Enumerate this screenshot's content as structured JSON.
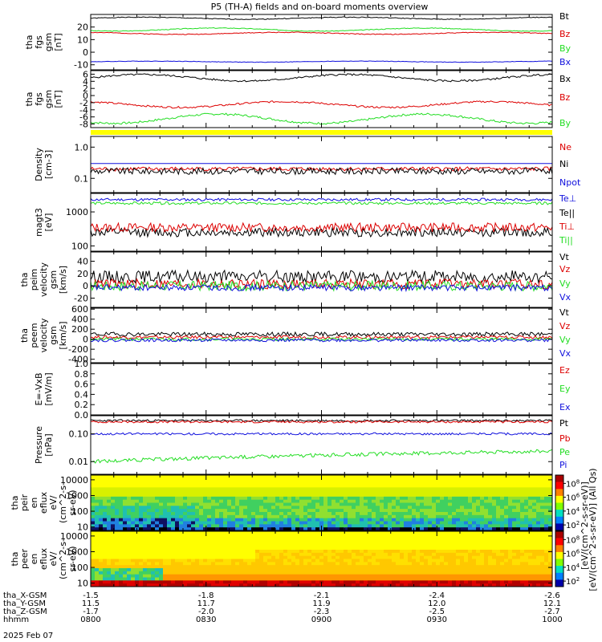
{
  "title": "P5 (TH-A) fields and on-board moments overview",
  "colors": {
    "black": "#000000",
    "red": "#dd0000",
    "green": "#22dd22",
    "blue": "#1010dd",
    "yellow": "#ffff00",
    "axis": "#000000"
  },
  "chart_data": [
    {
      "type": "line",
      "ylabel": [
        "tha",
        "fgs",
        "gsm",
        "[nT]"
      ],
      "ylim": [
        -14,
        30
      ],
      "yticks": [
        "20",
        "10",
        "0",
        "-10"
      ],
      "ytickvals": [
        20,
        10,
        0,
        -10
      ],
      "series": [
        {
          "name": "Bt",
          "color": "#000000",
          "base": 27,
          "amp": 0.8,
          "noise": 0.3,
          "seed": 1
        },
        {
          "name": "Bz",
          "color": "#dd0000",
          "base": 15,
          "amp": 0.8,
          "noise": 0.3,
          "seed": 2
        },
        {
          "name": "By",
          "color": "#22dd22",
          "base": 18,
          "amp": 1.2,
          "noise": 0.3,
          "seed": 3
        },
        {
          "name": "Bx",
          "color": "#1010dd",
          "base": -7.5,
          "amp": 0.4,
          "noise": 0.2,
          "seed": 4
        }
      ]
    },
    {
      "type": "line",
      "ylabel": [
        "tha",
        "fgs",
        "gsm",
        "[nT]"
      ],
      "ylim": [
        -9,
        7
      ],
      "yticks": [
        "6",
        "4",
        "2",
        "0",
        "-2",
        "-4",
        "-6",
        "-8"
      ],
      "ytickvals": [
        6,
        4,
        2,
        0,
        -2,
        -4,
        -6,
        -8
      ],
      "series": [
        {
          "name": "Bx",
          "color": "#000000",
          "base": 5,
          "amp": 0.9,
          "noise": 0.25,
          "seed": 5
        },
        {
          "name": "Bz",
          "color": "#dd0000",
          "base": -2.5,
          "amp": 0.8,
          "noise": 0.25,
          "seed": 6
        },
        {
          "name": "By",
          "color": "#22dd22",
          "base": -6.5,
          "amp": 1.3,
          "noise": 0.3,
          "seed": 7
        }
      ]
    },
    {
      "type": "line",
      "log": true,
      "ylabel": [
        "Density",
        "[cm-3]"
      ],
      "ylim": [
        0.035,
        2.2
      ],
      "yticks": [
        "1.0",
        "0.1"
      ],
      "ytickvals": [
        1.0,
        0.1
      ],
      "series": [
        {
          "name": "Ne",
          "color": "#dd0000",
          "base": 0.2,
          "noise": 0.05,
          "seed": 8
        },
        {
          "name": "Ni",
          "color": "#000000",
          "base": 0.17,
          "noise": 0.08,
          "seed": 9
        },
        {
          "name": "Npot",
          "color": "#1010dd",
          "base": 0.3,
          "noise": 0.0,
          "seed": 10
        }
      ]
    },
    {
      "type": "line",
      "log": true,
      "ylabel": [
        "magt3",
        "[eV]"
      ],
      "ylim": [
        70,
        3500
      ],
      "yticks": [
        "1000",
        "100"
      ],
      "ytickvals": [
        1000,
        100
      ],
      "series": [
        {
          "name": "Te⊥",
          "color": "#1010dd",
          "base": 2300,
          "noise": 0.03,
          "seed": 11
        },
        {
          "name": "Te||",
          "color": "#000000",
          "base": 250,
          "noise": 0.1,
          "seed": 12
        },
        {
          "name": "Ti⊥",
          "color": "#dd0000",
          "base": 350,
          "noise": 0.1,
          "seed": 13
        },
        {
          "name": "Ti||",
          "color": "#22dd22",
          "base": 1800,
          "noise": 0.03,
          "seed": 14
        }
      ]
    },
    {
      "type": "line",
      "ylabel": [
        "tha",
        "peim",
        "velocity",
        "gsm",
        "[km/s]"
      ],
      "ylim": [
        -35,
        55
      ],
      "yticks": [
        "40",
        "20",
        "0",
        "-20"
      ],
      "ytickvals": [
        40,
        20,
        0,
        -20
      ],
      "series": [
        {
          "name": "Vt",
          "color": "#000000",
          "base": 15,
          "noise": 10,
          "seed": 15
        },
        {
          "name": "Vz",
          "color": "#dd0000",
          "base": 3,
          "noise": 8,
          "seed": 16
        },
        {
          "name": "Vy",
          "color": "#22dd22",
          "base": 0,
          "noise": 8,
          "seed": 17
        },
        {
          "name": "Vx",
          "color": "#1010dd",
          "base": -3,
          "noise": 5,
          "seed": 18
        }
      ]
    },
    {
      "type": "line",
      "ylabel": [
        "tha",
        "peem",
        "velocity",
        "gsm",
        "[km/s]"
      ],
      "ylim": [
        -470,
        620
      ],
      "yticks": [
        "600",
        "400",
        "200",
        "0",
        "-200",
        "-400"
      ],
      "ytickvals": [
        600,
        400,
        200,
        0,
        -200,
        -400
      ],
      "series": [
        {
          "name": "Vt",
          "color": "#000000",
          "base": 100,
          "noise": 40,
          "seed": 19
        },
        {
          "name": "Vz",
          "color": "#dd0000",
          "base": 40,
          "noise": 30,
          "seed": 20
        },
        {
          "name": "Vy",
          "color": "#22dd22",
          "base": 0,
          "noise": 30,
          "seed": 21
        },
        {
          "name": "Vx",
          "color": "#1010dd",
          "base": -20,
          "noise": 30,
          "seed": 22
        }
      ]
    },
    {
      "type": "line",
      "ylabel": [
        "E=-VxB",
        "[mV/m]"
      ],
      "ylim": [
        0,
        1
      ],
      "yticks": [
        "1.0",
        "0.8",
        "0.6",
        "0.4",
        "0.2",
        "0.0"
      ],
      "ytickvals": [
        1.0,
        0.8,
        0.6,
        0.4,
        0.2,
        0.0
      ],
      "series": [
        {
          "name": "Ez",
          "color": "#dd0000"
        },
        {
          "name": "Ey",
          "color": "#22dd22"
        },
        {
          "name": "Ex",
          "color": "#1010dd"
        }
      ]
    },
    {
      "type": "line",
      "log": true,
      "ylabel": [
        "Pressure",
        "[nPa]"
      ],
      "ylim": [
        0.0035,
        0.45
      ],
      "yticks": [
        "0.10",
        "0.01"
      ],
      "ytickvals": [
        0.1,
        0.01
      ],
      "series": [
        {
          "name": "Pt",
          "color": "#000000",
          "base": 0.3,
          "noise": 0.03,
          "seed": 23
        },
        {
          "name": "Pb",
          "color": "#dd0000",
          "base": 0.27,
          "noise": 0.03,
          "seed": 24
        },
        {
          "name": "Pe",
          "color": "#22dd22",
          "base": 0.01,
          "noise": 0.05,
          "seed": 25
        },
        {
          "name": "Pi",
          "color": "#1010dd",
          "base": 0.1,
          "noise": 0.03,
          "seed": 26
        }
      ]
    },
    {
      "type": "heatmap",
      "ylabel": [
        "tha",
        "peir",
        "en",
        "eflux",
        "eV/",
        "(cm^2-s-",
        "sr-eV)"
      ],
      "log": true,
      "ylim": [
        6,
        20000
      ],
      "yticks": [
        "10000",
        "1000",
        "100",
        "10"
      ],
      "ytickvals": [
        10000,
        1000,
        100,
        10
      ]
    },
    {
      "type": "heatmap",
      "ylabel": [
        "tha",
        "peer",
        "en",
        "eflux",
        "eV/",
        "(cm^2-s-",
        "sr-eV)"
      ],
      "log": true,
      "ylim": [
        6,
        20000
      ],
      "yticks": [
        "10000",
        "1000",
        "100",
        "10"
      ],
      "ytickvals": [
        10000,
        1000,
        100,
        10
      ]
    }
  ],
  "colorbar": {
    "ticks_top": [
      "10^8",
      "10^6",
      "10^4",
      "10^2"
    ],
    "ticks_bottom": [
      "10^8",
      "10^6",
      "10^4",
      "10^2"
    ],
    "label": "[eV/(cm^2-s-sr-eV)] (All Qs)",
    "overlay_label": "[eV/(cm^2-s-sr-eV)]"
  },
  "xaxis": {
    "rows": [
      {
        "label": "tha_X-GSM",
        "values": [
          "-1.5",
          "-1.8",
          "-2.1",
          "-2.4",
          "-2.6"
        ]
      },
      {
        "label": "tha_Y-GSM",
        "values": [
          "11.5",
          "11.7",
          "11.9",
          "12.0",
          "12.1"
        ]
      },
      {
        "label": "tha_Z-GSM",
        "values": [
          "-1.7",
          "-2.0",
          "-2.3",
          "-2.5",
          "-2.7"
        ]
      },
      {
        "label": "hhmm",
        "values": [
          "0800",
          "0830",
          "0900",
          "0930",
          "1000"
        ]
      }
    ],
    "date": "2025 Feb 07"
  }
}
